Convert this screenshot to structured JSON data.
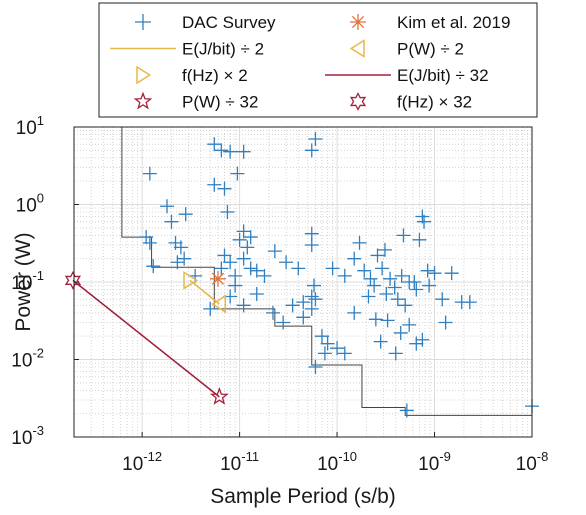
{
  "chart_data": {
    "type": "scatter",
    "title": "",
    "xlabel": "Sample Period (s/b)",
    "ylabel": "Power (W)",
    "xscale": "log",
    "yscale": "log",
    "xlim": [
      2e-13,
      1e-08
    ],
    "ylim": [
      0.001,
      10
    ],
    "x_ticks": [
      {
        "value": 1e-12,
        "base": "10",
        "exp": "-12"
      },
      {
        "value": 1e-11,
        "base": "10",
        "exp": "-11"
      },
      {
        "value": 1e-10,
        "base": "10",
        "exp": "-10"
      },
      {
        "value": 1e-09,
        "base": "10",
        "exp": "-9"
      },
      {
        "value": 1e-08,
        "base": "10",
        "exp": "-8"
      }
    ],
    "y_ticks": [
      {
        "value": 0.001,
        "base": "10",
        "exp": "-3"
      },
      {
        "value": 0.01,
        "base": "10",
        "exp": "-2"
      },
      {
        "value": 0.1,
        "base": "10",
        "exp": "-1"
      },
      {
        "value": 1,
        "base": "10",
        "exp": "0"
      },
      {
        "value": 10,
        "base": "10",
        "exp": "1"
      }
    ],
    "grid": true,
    "legend_position": "top",
    "series": [
      {
        "name": "DAC Survey",
        "marker": "plus",
        "color": "#2f7fc1",
        "points": [
          [
            1.2e-12,
            2.5
          ],
          [
            1.8e-12,
            0.95
          ],
          [
            2e-12,
            0.6
          ],
          [
            2.2e-12,
            0.32
          ],
          [
            2.5e-12,
            0.28
          ],
          [
            2.8e-12,
            0.75
          ],
          [
            1.1e-12,
            0.38
          ],
          [
            1.2e-12,
            0.32
          ],
          [
            1.3e-12,
            0.16
          ],
          [
            2.3e-12,
            0.18
          ],
          [
            2.7e-12,
            0.2
          ],
          [
            3.5e-12,
            0.12
          ],
          [
            5.5e-12,
            6.0
          ],
          [
            6.5e-12,
            5.0
          ],
          [
            8e-12,
            4.8
          ],
          [
            1.1e-11,
            4.8
          ],
          [
            5.5e-12,
            1.8
          ],
          [
            7.5e-12,
            0.8
          ],
          [
            7e-12,
            1.6
          ],
          [
            9.5e-12,
            2.5
          ],
          [
            1e-11,
            0.35
          ],
          [
            1.2e-11,
            0.28
          ],
          [
            1.1e-11,
            0.45
          ],
          [
            1.3e-11,
            0.38
          ],
          [
            6.5e-12,
            0.15
          ],
          [
            7e-12,
            0.22
          ],
          [
            8e-12,
            0.18
          ],
          [
            9e-12,
            0.12
          ],
          [
            1.1e-11,
            0.2
          ],
          [
            1.3e-11,
            0.15
          ],
          [
            9e-12,
            0.09
          ],
          [
            1.5e-11,
            0.14
          ],
          [
            1.8e-11,
            0.12
          ],
          [
            2.3e-11,
            0.25
          ],
          [
            3e-11,
            0.18
          ],
          [
            4e-11,
            0.15
          ],
          [
            5e-12,
            0.045
          ],
          [
            8e-12,
            0.065
          ],
          [
            1.1e-11,
            0.05
          ],
          [
            1.5e-11,
            0.07
          ],
          [
            2.2e-11,
            0.04
          ],
          [
            2.8e-11,
            0.03
          ],
          [
            3.5e-11,
            0.05
          ],
          [
            4.5e-11,
            0.055
          ],
          [
            5.5e-11,
            0.045
          ],
          [
            6e-11,
            0.06
          ],
          [
            4.5e-11,
            0.035
          ],
          [
            5.5e-11,
            0.3
          ],
          [
            5.5e-11,
            0.42
          ],
          [
            5.5e-11,
            5.0
          ],
          [
            6e-11,
            7.0
          ],
          [
            5.8e-11,
            0.09
          ],
          [
            5.5e-11,
            0.065
          ],
          [
            7e-11,
            0.02
          ],
          [
            8e-11,
            0.016
          ],
          [
            1e-10,
            0.014
          ],
          [
            7.5e-11,
            0.012
          ],
          [
            1.2e-10,
            0.012
          ],
          [
            6e-11,
            0.008
          ],
          [
            9e-11,
            0.15
          ],
          [
            1.2e-10,
            0.12
          ],
          [
            1.5e-10,
            0.2
          ],
          [
            1.7e-10,
            0.32
          ],
          [
            1.9e-10,
            0.14
          ],
          [
            2.1e-10,
            0.065
          ],
          [
            2.4e-10,
            0.09
          ],
          [
            2.6e-10,
            0.22
          ],
          [
            2.9e-10,
            0.15
          ],
          [
            3.2e-10,
            0.07
          ],
          [
            3.5e-10,
            0.11
          ],
          [
            3.9e-10,
            0.085
          ],
          [
            4.2e-10,
            0.06
          ],
          [
            4.6e-10,
            0.12
          ],
          [
            5e-10,
            0.05
          ],
          [
            5.5e-10,
            0.1
          ],
          [
            6.5e-10,
            0.08
          ],
          [
            7e-10,
            0.35
          ],
          [
            7.5e-10,
            0.7
          ],
          [
            7.8e-10,
            0.6
          ],
          [
            8.5e-10,
            0.14
          ],
          [
            1e-09,
            0.13
          ],
          [
            1.2e-09,
            0.06
          ],
          [
            1.5e-09,
            0.13
          ],
          [
            1.9e-09,
            0.055
          ],
          [
            2.3e-09,
            0.055
          ],
          [
            1.3e-09,
            0.03
          ],
          [
            2.5e-10,
            0.033
          ],
          [
            2.8e-10,
            0.017
          ],
          [
            4e-10,
            0.012
          ],
          [
            4.5e-10,
            0.022
          ],
          [
            5.5e-10,
            0.028
          ],
          [
            6.5e-10,
            0.016
          ],
          [
            7.5e-10,
            0.018
          ],
          [
            1.5e-10,
            0.04
          ],
          [
            3.1e-10,
            0.26
          ],
          [
            3.3e-10,
            0.032
          ],
          [
            5.2e-10,
            0.0022
          ],
          [
            6.2e-10,
            0.1
          ],
          [
            8.8e-10,
            0.09
          ],
          [
            2.2e-10,
            0.11
          ],
          [
            4.8e-10,
            0.4
          ],
          [
            1e-08,
            0.0025
          ]
        ]
      },
      {
        "name": "Kim et al. 2019",
        "marker": "asterisk",
        "color": "#e0743a",
        "points": [
          [
            6e-12,
            0.11
          ]
        ]
      },
      {
        "name": "E(J/bit) ÷ 2",
        "marker": "line",
        "color": "#e8b84a",
        "points": [
          [
            3.1e-12,
            0.105
          ],
          [
            6.2e-12,
            0.052
          ]
        ]
      },
      {
        "name": "P(W) ÷ 2",
        "marker": "triangle-left",
        "color": "#e8b84a",
        "points": [
          [
            6.2e-12,
            0.052
          ]
        ]
      },
      {
        "name": "f(Hz) × 2",
        "marker": "triangle-right",
        "color": "#e8b84a",
        "points": [
          [
            3.1e-12,
            0.105
          ]
        ]
      },
      {
        "name": "E(J/bit) ÷ 32",
        "marker": "line",
        "color": "#a2223a",
        "points": [
          [
            1.95e-13,
            0.105
          ],
          [
            6.2e-12,
            0.0033
          ]
        ]
      },
      {
        "name": "P(W) ÷ 32",
        "marker": "star5",
        "color": "#a2223a",
        "points": [
          [
            6.2e-12,
            0.0033
          ]
        ]
      },
      {
        "name": "f(Hz) × 32",
        "marker": "star6",
        "color": "#a2223a",
        "points": [
          [
            1.95e-13,
            0.105
          ]
        ]
      }
    ],
    "frontier": {
      "color": "#444444",
      "points": [
        [
          6.2e-13,
          10
        ],
        [
          6.2e-13,
          0.38
        ],
        [
          1.25e-12,
          0.38
        ],
        [
          1.25e-12,
          0.155
        ],
        [
          5.5e-12,
          0.155
        ],
        [
          5.5e-12,
          0.045
        ],
        [
          2.3e-11,
          0.045
        ],
        [
          2.3e-11,
          0.027
        ],
        [
          5.5e-11,
          0.027
        ],
        [
          5.5e-11,
          0.0085
        ],
        [
          1.8e-10,
          0.0085
        ],
        [
          1.8e-10,
          0.0024
        ],
        [
          5e-10,
          0.0024
        ],
        [
          5e-10,
          0.0019
        ],
        [
          1e-08,
          0.0019
        ]
      ]
    },
    "legend_layout": [
      [
        "DAC Survey",
        "Kim et al. 2019"
      ],
      [
        "E(J/bit) ÷ 2",
        "P(W) ÷ 2"
      ],
      [
        "f(Hz) × 2",
        "E(J/bit) ÷ 32"
      ],
      [
        "P(W) ÷ 32",
        "f(Hz) × 32"
      ]
    ]
  }
}
